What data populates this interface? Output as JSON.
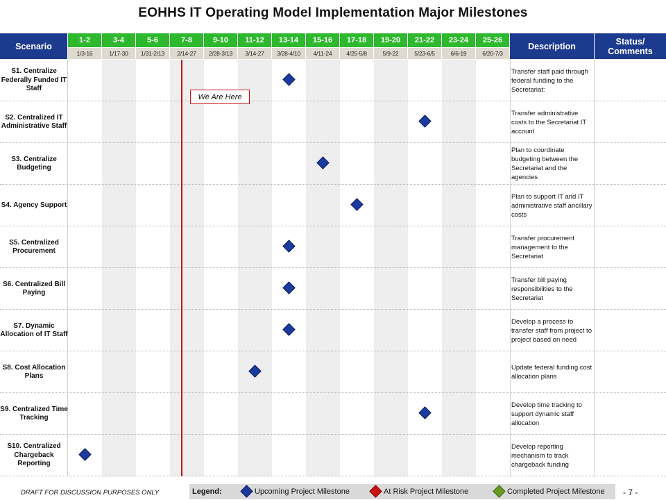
{
  "title": "EOHHS IT Operating Model Implementation Major Milestones",
  "header": {
    "scenario": "Scenario",
    "description": "Description",
    "status_line1": "Status/",
    "status_line2": "Comments"
  },
  "weeks": [
    "1-2",
    "3-4",
    "5-6",
    "7-8",
    "9-10",
    "11-12",
    "13-14",
    "15-16",
    "17-18",
    "19-20",
    "21-22",
    "23-24",
    "25-26"
  ],
  "dates": [
    "1/3-16",
    "1/17-30",
    "1/31-2/13",
    "2/14-27",
    "2/28-3/13",
    "3/14-27",
    "3/28-4/10",
    "4/11-24",
    "4/25-5/8",
    "5/9-22",
    "5/23-6/5",
    "6/6-19",
    "6/20-7/3"
  ],
  "rows": [
    {
      "scenario": "S1. Centralize Federally Funded IT Staff",
      "description": "Transfer staff paid through federal funding to the Secretariat:",
      "milestone_period": "13-14",
      "status": "upcoming"
    },
    {
      "scenario": "S2. Centralized IT Administrative Staff",
      "description": "Transfer administrative costs to the Secretariat IT account",
      "milestone_period": "21-22",
      "status": "upcoming"
    },
    {
      "scenario": "S3. Centralize Budgeting",
      "description": "Plan to coordinate budgeting between the Secretariat and the agencies",
      "milestone_period": "15-16",
      "status": "upcoming"
    },
    {
      "scenario": "S4. Agency Support",
      "description": "Plan to support IT and IT administrative staff ancillary costs",
      "milestone_period": "17-18",
      "status": "upcoming"
    },
    {
      "scenario": "S5. Centralized Procurement",
      "description": "Transfer procurement management to the Secretariat",
      "milestone_period": "13-14",
      "status": "upcoming"
    },
    {
      "scenario": "S6. Centralized Bill Paying",
      "description": "Transfer bill paying responsibilities to the Secretariat",
      "milestone_period": "13-14",
      "status": "upcoming"
    },
    {
      "scenario": "S7. Dynamic Allocation of IT Staff",
      "description": "Develop a process to transfer staff from project to project based on need",
      "milestone_period": "13-14",
      "status": "upcoming"
    },
    {
      "scenario": "S8. Cost Allocation Plans",
      "description": "Update federal funding cost allocation plans",
      "milestone_period": "11-12",
      "status": "upcoming"
    },
    {
      "scenario": "S9. Centralized Time Tracking",
      "description": "Develop time tracking to support dynamic staff allocation",
      "milestone_period": "21-22",
      "status": "upcoming"
    },
    {
      "scenario": "S10. Centralized Chargeback Reporting",
      "description": "Develop reporting mechanism to track chargeback funding",
      "milestone_period": "1-2",
      "status": "upcoming"
    }
  ],
  "current_marker": "We Are Here",
  "footer_note": "DRAFT FOR DISCUSSION PURPOSES ONLY",
  "legend": {
    "label": "Legend:",
    "items": [
      {
        "label": "Upcoming Project Milestone",
        "color": "#1c3a9c"
      },
      {
        "label": "At Risk Project Milestone",
        "color": "#cc1111"
      },
      {
        "label": "Completed Project Milestone",
        "color": "#6a9a1f"
      }
    ]
  },
  "page_number": "- 7 -"
}
